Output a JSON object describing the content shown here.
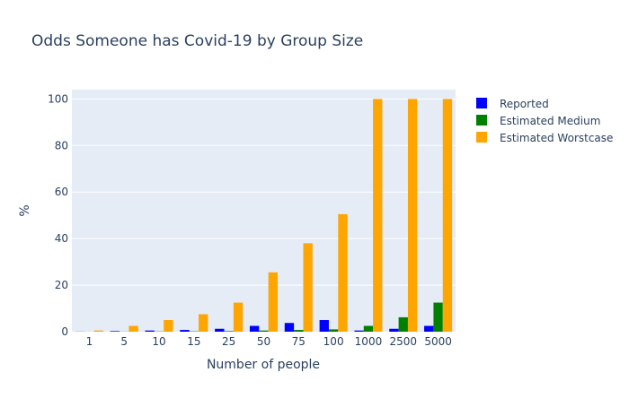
{
  "chart_data": {
    "type": "bar",
    "title": "Odds Someone has Covid-19 by Group Size",
    "xlabel": "Number of people",
    "ylabel": "%",
    "categories": [
      "1",
      "5",
      "10",
      "15",
      "25",
      "50",
      "75",
      "100",
      "1000",
      "2500",
      "5000"
    ],
    "ylim": [
      0,
      104
    ],
    "yticks": [
      0,
      20,
      40,
      60,
      80,
      100
    ],
    "grid": true,
    "legend_position": "right",
    "series": [
      {
        "name": "Reported",
        "color": "#0000ff",
        "values": [
          0.05,
          0.25,
          0.5,
          0.75,
          1.25,
          2.5,
          3.75,
          5,
          0.5,
          1.25,
          2.5
        ]
      },
      {
        "name": "Estimated Medium",
        "color": "#008000",
        "values": [
          0.01,
          0.05,
          0.1,
          0.15,
          0.25,
          0.5,
          0.75,
          1,
          2.5,
          6.2,
          12.5
        ]
      },
      {
        "name": "Estimated Worstcase",
        "color": "#ffa500",
        "values": [
          0.5,
          2.5,
          5,
          7.5,
          12.5,
          25.5,
          38,
          50.5,
          100,
          100,
          100
        ]
      }
    ]
  }
}
